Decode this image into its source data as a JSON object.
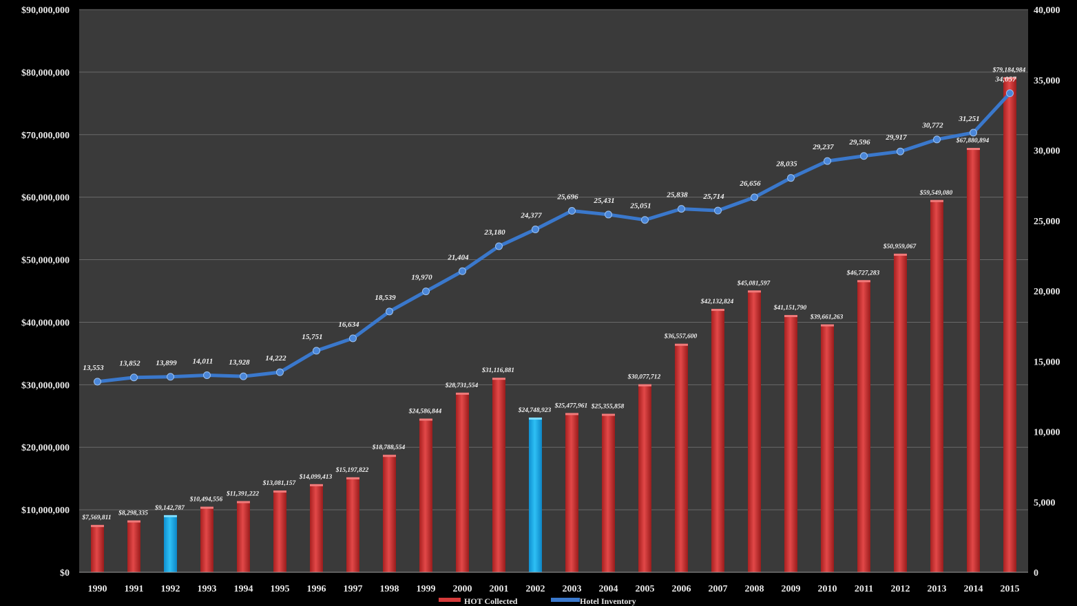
{
  "chart_data": {
    "type": "bar",
    "title": "",
    "xlabel": "",
    "ylabel": "",
    "y2label": "",
    "categories": [
      "1990",
      "1991",
      "1992",
      "1993",
      "1994",
      "1995",
      "1996",
      "1997",
      "1998",
      "1999",
      "2000",
      "2001",
      "2002",
      "2003",
      "2004",
      "2005",
      "2006",
      "2007",
      "2008",
      "2009",
      "2010",
      "2011",
      "2012",
      "2013",
      "2014",
      "2015"
    ],
    "ylim": [
      0,
      90000000
    ],
    "y2lim": [
      0,
      40000
    ],
    "grid": true,
    "legend_position": "bottom",
    "y_ticks": [
      "$0",
      "$10,000,000",
      "$20,000,000",
      "$30,000,000",
      "$40,000,000",
      "$50,000,000",
      "$60,000,000",
      "$70,000,000",
      "$80,000,000",
      "$90,000,000"
    ],
    "y2_ticks": [
      "0",
      "5,000",
      "10,000",
      "15,000",
      "20,000",
      "25,000",
      "30,000",
      "35,000",
      "40,000"
    ],
    "series": [
      {
        "name": "HOT Collected",
        "type": "bar",
        "axis": "left",
        "color": "#d63b3b",
        "highlight_color": "#1fb2ee",
        "highlight_categories": [
          "1992",
          "2002"
        ],
        "values": [
          7569811,
          8298335,
          9142787,
          10494556,
          11391222,
          13081157,
          14099413,
          15197822,
          18788554,
          24586844,
          28731554,
          31116881,
          24748923,
          25477961,
          25355858,
          30077712,
          36557600,
          42132824,
          45081597,
          41151790,
          39661263,
          46727283,
          50959067,
          59549080,
          67880894,
          79184984
        ],
        "labels": [
          "$7,569,811",
          "$8,298,335",
          "$9,142,787",
          "$10,494,556",
          "$11,391,222",
          "$13,081,157",
          "$14,099,413",
          "$15,197,822",
          "$18,788,554",
          "$24,586,844",
          "$28,731,554",
          "$31,116,881",
          "$24,748,923",
          "$25,477,961",
          "$25,355,858",
          "$30,077,712",
          "$36,557,600",
          "$42,132,824",
          "$45,081,597",
          "$41,151,790",
          "$39,661,263",
          "$46,727,283",
          "$50,959,067",
          "$59,549,080",
          "$67,880,894",
          "$79,184,984"
        ]
      },
      {
        "name": "Hotel Inventory",
        "type": "line",
        "axis": "right",
        "color": "#3a78cc",
        "values": [
          13553,
          13852,
          13899,
          14011,
          13928,
          14222,
          15751,
          16634,
          18539,
          19970,
          21404,
          23180,
          24377,
          25696,
          25431,
          25051,
          25838,
          25714,
          26656,
          28035,
          29237,
          29596,
          29917,
          30772,
          31251,
          34057
        ],
        "labels": [
          "13,553",
          "13,852",
          "13,899",
          "14,011",
          "13,928",
          "14,222",
          "15,751",
          "16,634",
          "18,539",
          "19,970",
          "21,404",
          "23,180",
          "24,377",
          "25,696",
          "25,431",
          "25,051",
          "25,838",
          "25,714",
          "26,656",
          "28,035",
          "29,237",
          "29,596",
          "29,917",
          "30,772",
          "31,251",
          "34,057"
        ]
      }
    ]
  }
}
